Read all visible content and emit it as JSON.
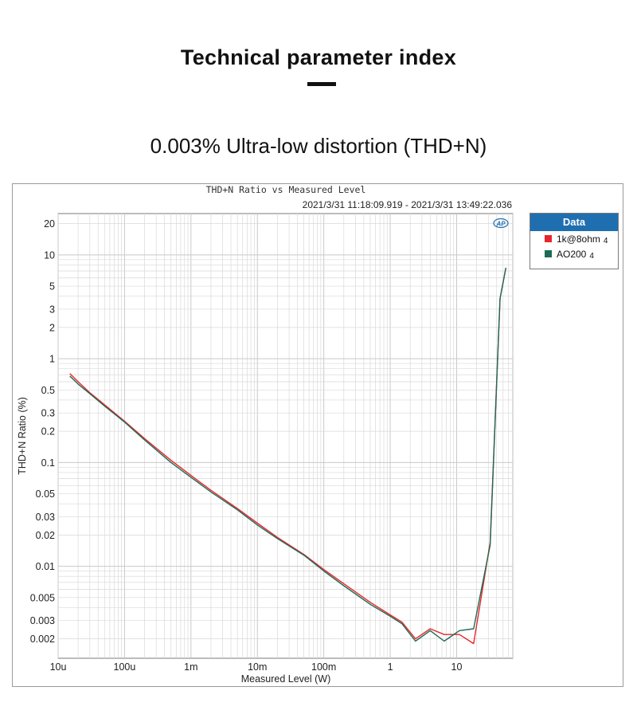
{
  "page": {
    "title": "Technical parameter index",
    "subtitle": "0.003% Ultra-low distortion (THD+N)"
  },
  "colors": {
    "series_red": "#e8262a",
    "series_green": "#1e6b55",
    "legend_header": "#1f6fb0",
    "grid": "#d9d9d9",
    "ap_logo": "#1f6fb0"
  },
  "legend": {
    "header": "Data",
    "items": [
      {
        "label": "1k@8ohm",
        "suffix": "4",
        "color": "#e8262a"
      },
      {
        "label": "AO200",
        "suffix": "4",
        "color": "#1e6b55"
      }
    ]
  },
  "chart_data": {
    "type": "line",
    "title": "THD+N Ratio vs Measured Level",
    "subtitle": "2021/3/31 11:18:09.919 - 2021/3/31 13:49:22.036",
    "xlabel": "Measured Level (W)",
    "ylabel": "THD+N Ratio (%)",
    "x_scale": "log",
    "y_scale": "log",
    "xlim": [
      1e-05,
      70
    ],
    "ylim": [
      0.0013,
      25
    ],
    "grid": true,
    "legend_placement": "right",
    "x_ticks": [
      {
        "value": 1e-05,
        "label": "10u"
      },
      {
        "value": 0.0001,
        "label": "100u"
      },
      {
        "value": 0.001,
        "label": "1m"
      },
      {
        "value": 0.01,
        "label": "10m"
      },
      {
        "value": 0.1,
        "label": "100m"
      },
      {
        "value": 1,
        "label": "1"
      },
      {
        "value": 10,
        "label": "10"
      }
    ],
    "y_ticks": [
      {
        "value": 20,
        "label": "20"
      },
      {
        "value": 10,
        "label": "10"
      },
      {
        "value": 5,
        "label": "5"
      },
      {
        "value": 3,
        "label": "3"
      },
      {
        "value": 2,
        "label": "2"
      },
      {
        "value": 1,
        "label": "1"
      },
      {
        "value": 0.5,
        "label": "0.5"
      },
      {
        "value": 0.3,
        "label": "0.3"
      },
      {
        "value": 0.2,
        "label": "0.2"
      },
      {
        "value": 0.1,
        "label": "0.1"
      },
      {
        "value": 0.05,
        "label": "0.05"
      },
      {
        "value": 0.03,
        "label": "0.03"
      },
      {
        "value": 0.02,
        "label": "0.02"
      },
      {
        "value": 0.01,
        "label": "0.01"
      },
      {
        "value": 0.005,
        "label": "0.005"
      },
      {
        "value": 0.003,
        "label": "0.003"
      },
      {
        "value": 0.002,
        "label": "0.002"
      }
    ],
    "series": [
      {
        "name": "1k@8ohm",
        "color": "#e8262a",
        "points": [
          [
            1.5e-05,
            0.72
          ],
          [
            2e-05,
            0.6
          ],
          [
            3e-05,
            0.47
          ],
          [
            5e-05,
            0.36
          ],
          [
            0.0001,
            0.25
          ],
          [
            0.0002,
            0.17
          ],
          [
            0.0005,
            0.105
          ],
          [
            0.001,
            0.075
          ],
          [
            0.002,
            0.054
          ],
          [
            0.005,
            0.036
          ],
          [
            0.01,
            0.026
          ],
          [
            0.02,
            0.019
          ],
          [
            0.05,
            0.013
          ],
          [
            0.1,
            0.0093
          ],
          [
            0.2,
            0.0068
          ],
          [
            0.5,
            0.0045
          ],
          [
            1,
            0.0034
          ],
          [
            1.5,
            0.0029
          ],
          [
            2.4,
            0.002
          ],
          [
            4,
            0.0025
          ],
          [
            6.5,
            0.0022
          ],
          [
            11,
            0.0022
          ],
          [
            18,
            0.0018
          ],
          [
            32,
            0.017
          ],
          [
            45,
            3.8
          ],
          [
            55,
            7.5
          ]
        ]
      },
      {
        "name": "AO200",
        "color": "#1e6b55",
        "points": [
          [
            1.5e-05,
            0.68
          ],
          [
            2e-05,
            0.57
          ],
          [
            3e-05,
            0.46
          ],
          [
            5e-05,
            0.35
          ],
          [
            0.0001,
            0.245
          ],
          [
            0.0002,
            0.165
          ],
          [
            0.0005,
            0.1
          ],
          [
            0.001,
            0.072
          ],
          [
            0.002,
            0.052
          ],
          [
            0.005,
            0.035
          ],
          [
            0.01,
            0.025
          ],
          [
            0.02,
            0.0185
          ],
          [
            0.05,
            0.0128
          ],
          [
            0.1,
            0.009
          ],
          [
            0.2,
            0.0065
          ],
          [
            0.5,
            0.0043
          ],
          [
            1,
            0.0033
          ],
          [
            1.5,
            0.0028
          ],
          [
            2.4,
            0.0019
          ],
          [
            4,
            0.0024
          ],
          [
            6.5,
            0.0019
          ],
          [
            11,
            0.0024
          ],
          [
            18,
            0.0025
          ],
          [
            32,
            0.016
          ],
          [
            45,
            3.8
          ],
          [
            55,
            7.5
          ]
        ]
      }
    ]
  }
}
